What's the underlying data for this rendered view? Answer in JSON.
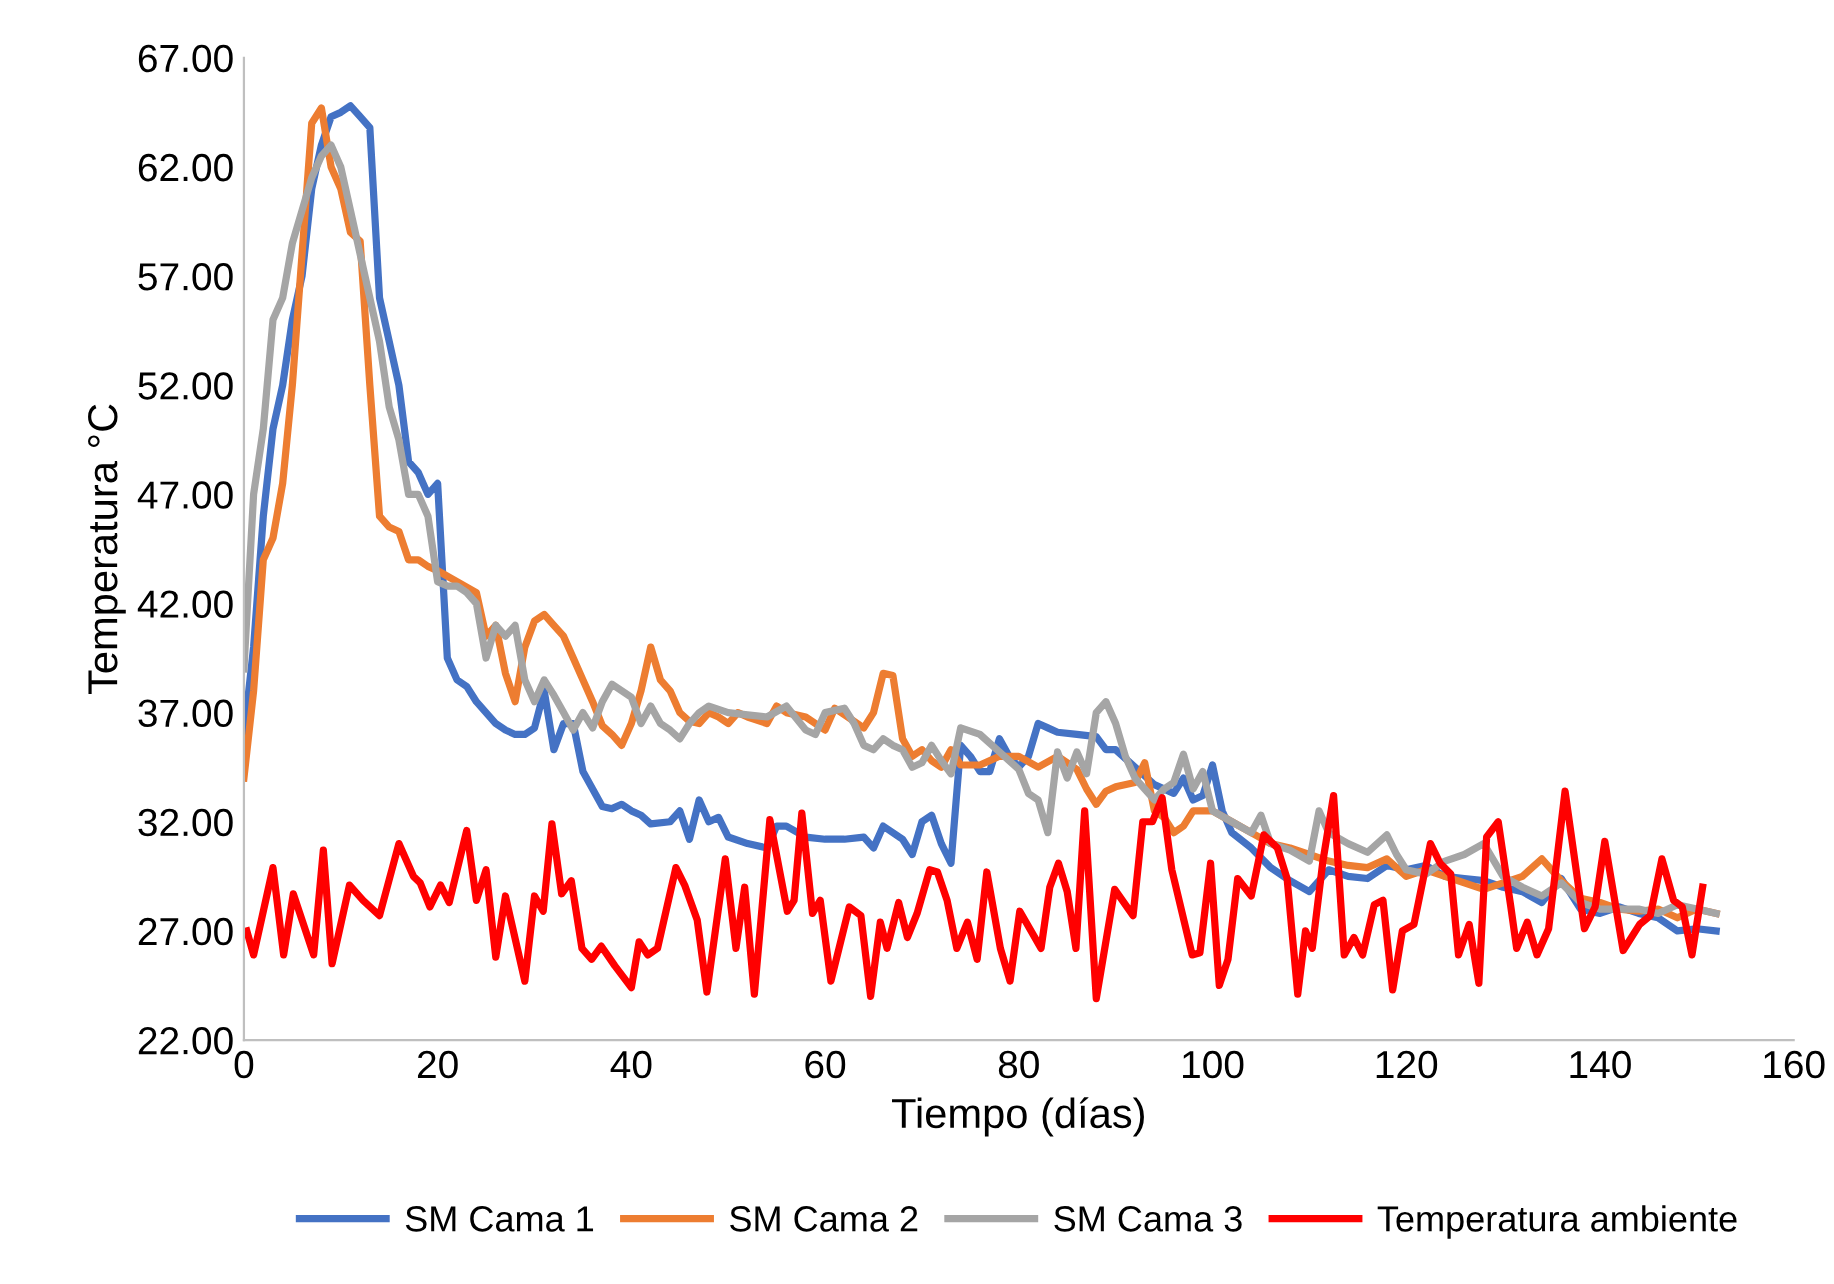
{
  "chart_data": {
    "type": "line",
    "xlabel": "Tiempo (días)",
    "ylabel": "Temperatura °C",
    "xlim": [
      0,
      160
    ],
    "xticks": [
      0,
      20,
      40,
      60,
      80,
      100,
      120,
      140,
      160
    ],
    "ylim": [
      22,
      67
    ],
    "yticks": [
      {
        "value": 22,
        "label": "22.00"
      },
      {
        "value": 27,
        "label": "27.00"
      },
      {
        "value": 32,
        "label": "32.00"
      },
      {
        "value": 37,
        "label": "37.00"
      },
      {
        "value": 42,
        "label": "42.00"
      },
      {
        "value": 47,
        "label": "47.00"
      },
      {
        "value": 52,
        "label": "52.00"
      },
      {
        "value": 57,
        "label": "57.00"
      },
      {
        "value": 62,
        "label": "62.00"
      },
      {
        "value": 67,
        "label": "67.00"
      }
    ],
    "grid": false,
    "legend": "bottom",
    "marker": "none",
    "line_style": "solid",
    "series": [
      {
        "name": "SM Cama 1",
        "color": "#4472c4",
        "x": [
          0,
          1,
          2,
          3,
          4,
          5,
          6,
          7,
          8,
          9,
          10,
          11,
          12,
          13,
          14,
          15,
          16,
          17,
          18,
          19,
          20,
          21,
          22,
          23,
          24,
          25,
          26,
          27,
          28,
          29,
          30,
          31,
          32,
          33,
          34,
          35,
          36,
          37,
          38,
          39,
          40,
          41,
          42,
          44,
          45,
          46,
          47,
          48,
          49,
          50,
          52,
          54,
          55,
          56,
          58,
          60,
          62,
          64,
          65,
          66,
          68,
          69,
          70,
          71,
          72,
          73,
          74,
          75,
          76,
          77,
          78,
          79,
          80,
          81,
          82,
          83,
          84,
          86,
          88,
          89,
          90,
          92,
          94,
          96,
          97,
          98,
          99,
          100,
          101,
          102,
          104,
          106,
          108,
          110,
          112,
          114,
          116,
          118,
          120,
          122,
          124,
          126,
          128,
          130,
          132,
          134,
          136,
          138,
          140,
          142,
          144,
          146,
          148,
          150,
          152
        ],
        "values": [
          36,
          40,
          46,
          50,
          52,
          55,
          57,
          61,
          63,
          64.3,
          64.5,
          64.8,
          64.3,
          63.8,
          56,
          54,
          52,
          48.5,
          48,
          47,
          47.5,
          39.5,
          38.5,
          38.2,
          37.5,
          37,
          36.5,
          36.2,
          36,
          36,
          36.3,
          38,
          35.3,
          36.5,
          36.5,
          34.3,
          33.5,
          32.7,
          32.6,
          32.8,
          32.5,
          32.3,
          31.9,
          32,
          32.5,
          31.2,
          33,
          32,
          32.2,
          31.3,
          31,
          30.8,
          31.8,
          31.8,
          31.3,
          31.2,
          31.2,
          31.3,
          30.8,
          31.8,
          31.2,
          30.5,
          32,
          32.3,
          31,
          30.1,
          35.5,
          35,
          34.3,
          34.3,
          35.8,
          35,
          34.5,
          35,
          36.5,
          36.3,
          36.1,
          36,
          35.9,
          35.3,
          35.3,
          34.5,
          33.7,
          33.3,
          34,
          33,
          33.2,
          34.6,
          32.5,
          31.5,
          30.8,
          29.9,
          29.3,
          28.8,
          29.8,
          29.5,
          29.4,
          30,
          29.8,
          30,
          29.5,
          29.4,
          29.3,
          29,
          28.8,
          28.3,
          29.4,
          28,
          27.8,
          28.1,
          27.8,
          27.6,
          27,
          27.1,
          27
        ]
      },
      {
        "name": "SM Cama 2",
        "color": "#ed7d31",
        "x": [
          0,
          1,
          2,
          3,
          4,
          5,
          6,
          7,
          8,
          9,
          10,
          11,
          12,
          13,
          14,
          15,
          16,
          17,
          18,
          19,
          20,
          22,
          24,
          25,
          26,
          27,
          28,
          29,
          30,
          31,
          32,
          33,
          34,
          35,
          36,
          37,
          38,
          39,
          40,
          41,
          42,
          43,
          44,
          45,
          46,
          47,
          48,
          49,
          50,
          51,
          52,
          54,
          55,
          56,
          58,
          60,
          61,
          62,
          64,
          65,
          66,
          67,
          68,
          69,
          70,
          71,
          72,
          73,
          74,
          76,
          78,
          80,
          82,
          84,
          85,
          86,
          87,
          88,
          89,
          90,
          92,
          93,
          94,
          95,
          96,
          97,
          98,
          100,
          102,
          104,
          106,
          108,
          110,
          112,
          114,
          116,
          118,
          120,
          122,
          124,
          126,
          128,
          130,
          132,
          134,
          136,
          138,
          140,
          142,
          144,
          146,
          148,
          150,
          152
        ],
        "values": [
          34,
          38,
          44,
          45,
          47.5,
          52,
          58,
          64,
          64.7,
          62,
          61,
          59,
          58.6,
          52,
          46,
          45.5,
          45.3,
          44,
          44,
          43.7,
          43.5,
          43,
          42.5,
          40.5,
          41,
          38.8,
          37.5,
          40,
          41.2,
          41.5,
          41,
          40.5,
          39.5,
          38.5,
          37.5,
          36.4,
          36,
          35.5,
          36.5,
          38,
          40,
          38.5,
          38,
          37,
          36.6,
          36.5,
          37,
          36.8,
          36.5,
          37,
          36.8,
          36.5,
          37.3,
          37,
          36.8,
          36.2,
          37.2,
          36.9,
          36.3,
          37,
          38.8,
          38.7,
          35.8,
          35,
          35.3,
          34.8,
          34.5,
          35.3,
          34.6,
          34.6,
          35,
          35,
          34.5,
          35,
          34.7,
          34.4,
          33.5,
          32.8,
          33.4,
          33.6,
          33.8,
          34.7,
          32.5,
          32.2,
          31.5,
          31.8,
          32.5,
          32.5,
          32,
          31.5,
          31,
          30.8,
          30.5,
          30.2,
          30,
          29.9,
          30.3,
          29.5,
          29.8,
          29.5,
          29.2,
          28.9,
          29.2,
          29.5,
          30.3,
          29.3,
          28.5,
          28.3,
          28,
          27.9,
          28,
          27.6,
          28,
          27.8
        ]
      },
      {
        "name": "SM Cama 3",
        "color": "#a5a5a5",
        "x": [
          0,
          1,
          2,
          3,
          4,
          5,
          6,
          7,
          8,
          9,
          10,
          11,
          12,
          13,
          14,
          15,
          16,
          17,
          18,
          19,
          20,
          21,
          22,
          23,
          24,
          25,
          26,
          27,
          28,
          29,
          30,
          31,
          32,
          33,
          34,
          35,
          36,
          37,
          38,
          39,
          40,
          41,
          42,
          43,
          44,
          45,
          46,
          47,
          48,
          50,
          52,
          54,
          56,
          58,
          59,
          60,
          62,
          63,
          64,
          65,
          66,
          67,
          68,
          69,
          70,
          71,
          72,
          73,
          74,
          76,
          78,
          80,
          81,
          82,
          83,
          84,
          85,
          86,
          87,
          88,
          89,
          90,
          91,
          92,
          93,
          94,
          95,
          96,
          97,
          98,
          99,
          100,
          102,
          104,
          105,
          106,
          108,
          110,
          111,
          112,
          114,
          116,
          118,
          119,
          120,
          122,
          124,
          126,
          128,
          130,
          132,
          134,
          136,
          138,
          140,
          142,
          144,
          146,
          148,
          150,
          152
        ],
        "values": [
          39,
          47,
          50,
          55,
          56,
          58.5,
          60,
          61.5,
          62.5,
          63,
          62,
          60,
          58,
          56,
          54,
          51,
          49.5,
          47,
          47,
          46,
          43,
          42.8,
          42.8,
          42.5,
          42,
          39.5,
          41,
          40.5,
          41,
          38.5,
          37.5,
          38.5,
          37.8,
          37,
          36.2,
          37,
          36.3,
          37.5,
          38.3,
          38,
          37.7,
          36.5,
          37.3,
          36.5,
          36.2,
          35.8,
          36.5,
          37,
          37.3,
          37,
          36.9,
          36.8,
          37.3,
          36.2,
          36,
          37,
          37.2,
          36.5,
          35.5,
          35.3,
          35.8,
          35.5,
          35.3,
          34.5,
          34.7,
          35.5,
          34.8,
          34.2,
          36.3,
          36,
          35.2,
          34.4,
          33.3,
          33,
          31.5,
          35.2,
          34,
          35.2,
          34.2,
          37,
          37.5,
          36.5,
          35,
          34,
          33.5,
          33,
          33.5,
          33.8,
          35.1,
          33.5,
          34.3,
          32.5,
          32,
          31.5,
          32.3,
          31,
          30.7,
          30.2,
          32.5,
          31.5,
          31,
          30.6,
          31.4,
          30.5,
          29.8,
          29.6,
          30.2,
          30.5,
          31,
          29.5,
          29,
          28.6,
          29.2,
          28.3,
          28,
          28,
          28,
          27.8,
          28.2,
          28,
          27.8
        ]
      },
      {
        "name": "Temperatura ambiente",
        "color": "#ff0000",
        "x": [
          0.3,
          1,
          3,
          4.1,
          5.1,
          7.2,
          8.2,
          9.1,
          10.9,
          12.3,
          14,
          16,
          17.5,
          18.2,
          19.2,
          20.3,
          21.2,
          23,
          24,
          25,
          26,
          27,
          29,
          30,
          30.9,
          31.8,
          32.8,
          33.8,
          34.9,
          35.9,
          36.9,
          38.3,
          40,
          40.8,
          41.7,
          42.7,
          44.6,
          45.5,
          46.8,
          47.8,
          49.7,
          50.8,
          51.7,
          52.7,
          54.3,
          56.1,
          56.8,
          57.6,
          58.7,
          59.5,
          60.6,
          62.5,
          63.7,
          64.7,
          65.7,
          66.4,
          67.6,
          68.5,
          69.5,
          70.8,
          71.6,
          72.6,
          73.6,
          74.7,
          75.7,
          76.7,
          78.1,
          79.1,
          80.1,
          82.3,
          83.2,
          84.1,
          85,
          85.9,
          86.8,
          88,
          89.9,
          91.8,
          92.8,
          93.8,
          94.8,
          95.8,
          97.9,
          98.7,
          99.8,
          100.7,
          101.6,
          102.6,
          104,
          105.3,
          106.7,
          107.7,
          108.8,
          109.6,
          110.3,
          111.4,
          112.5,
          113.6,
          114.6,
          115.5,
          116.7,
          117.6,
          118.6,
          119.6,
          120.8,
          122.5,
          123.5,
          124.6,
          125.4,
          126.5,
          127.5,
          128.3,
          129.5,
          130.8,
          131.4,
          132.5,
          133.5,
          134.7,
          136.4,
          138.4,
          139.5,
          140.5,
          142.4,
          144.1,
          145.2,
          146.4,
          147.6,
          148.5,
          149.5,
          150.6
        ],
        "values": [
          27,
          25.9,
          29.9,
          25.9,
          28.7,
          25.9,
          30.7,
          25.5,
          29.1,
          28.4,
          27.7,
          31,
          29.5,
          29.2,
          28.1,
          29.1,
          28.3,
          31.6,
          28.4,
          29.8,
          25.8,
          28.6,
          24.7,
          28.6,
          27.9,
          31.9,
          28.7,
          29.3,
          26.2,
          25.7,
          26.3,
          25.4,
          24.4,
          26.5,
          25.9,
          26.2,
          29.9,
          29.1,
          27.5,
          24.2,
          30.3,
          26.2,
          29,
          24.1,
          32.1,
          27.9,
          28.4,
          32.4,
          27.8,
          28.4,
          24.7,
          28.1,
          27.7,
          24,
          27.4,
          26.2,
          28.3,
          26.7,
          27.8,
          29.8,
          29.7,
          28.4,
          26.2,
          27.4,
          25.7,
          29.7,
          26.2,
          24.7,
          27.9,
          26.2,
          29,
          30.1,
          28.8,
          26.2,
          32.5,
          23.9,
          28.9,
          27.7,
          32,
          32,
          33.1,
          29.8,
          25.9,
          26,
          30.1,
          24.5,
          25.7,
          29.4,
          28.6,
          31.4,
          30.8,
          29.4,
          24.1,
          27,
          26.2,
          30.2,
          33.2,
          25.9,
          26.7,
          25.9,
          28.2,
          28.4,
          24.3,
          27,
          27.3,
          31,
          30.1,
          29.6,
          25.9,
          27.3,
          24.6,
          31.3,
          32,
          28.1,
          26.2,
          27.4,
          25.9,
          27.1,
          33.4,
          27.1,
          28.1,
          31.1,
          26.1,
          27.3,
          27.7,
          30.3,
          28.4,
          28.1,
          25.9,
          29
        ]
      }
    ]
  }
}
